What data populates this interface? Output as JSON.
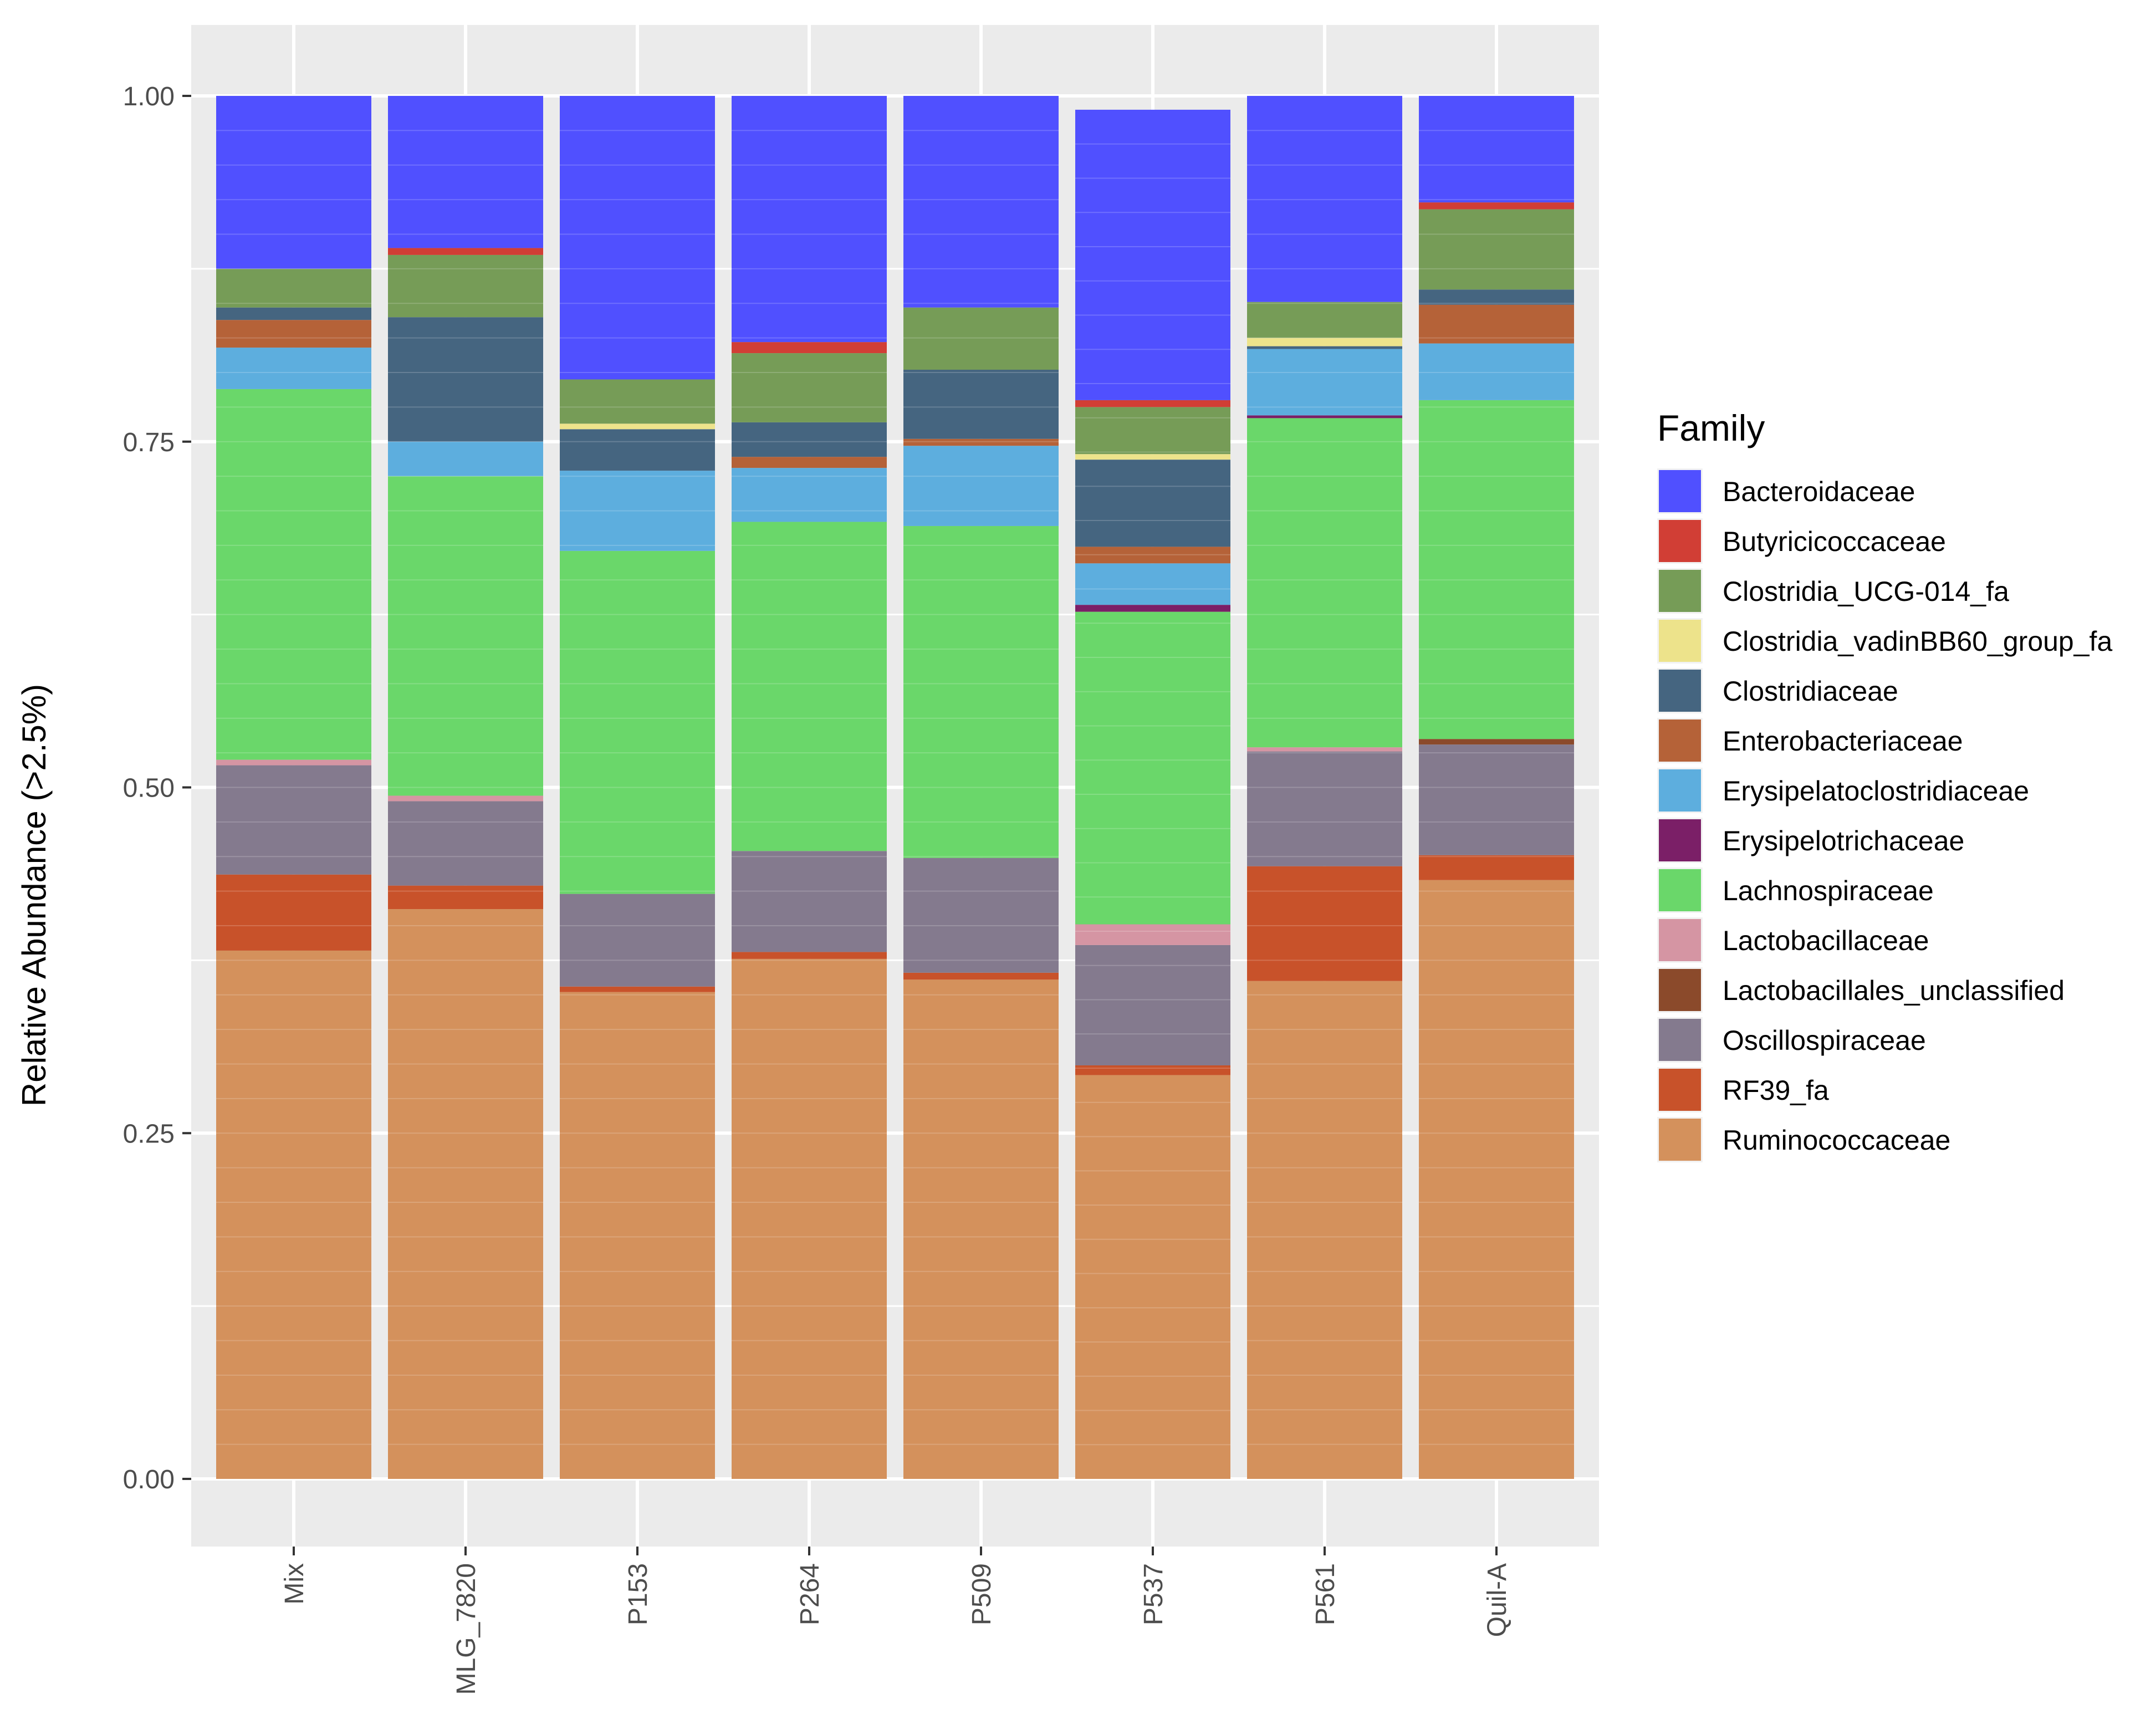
{
  "chart_data": {
    "type": "bar",
    "stacked": true,
    "ylabel": "Relative Abundance (>2.5%)",
    "xlabel": "",
    "ylim": [
      0,
      1.03
    ],
    "y_ticks": [
      "0.00",
      "0.25",
      "0.50",
      "0.75",
      "1.00"
    ],
    "y_tick_values": [
      0,
      0.25,
      0.5,
      0.75,
      1.0
    ],
    "grid": true,
    "legend_title": "Family",
    "legend_position": "right",
    "categories": [
      "Mix",
      "MLG_7820",
      "P153",
      "P264",
      "P509",
      "P537",
      "P561",
      "Quil-A"
    ],
    "series": [
      {
        "name": "Ruminococcaceae",
        "color": "#D4915C",
        "values": [
          0.382,
          0.412,
          0.352,
          0.376,
          0.361,
          0.292,
          0.36,
          0.433
        ]
      },
      {
        "name": "RF39_fa",
        "color": "#C8522A",
        "values": [
          0.055,
          0.017,
          0.004,
          0.005,
          0.005,
          0.007,
          0.083,
          0.018
        ]
      },
      {
        "name": "Oscillospiraceae",
        "color": "#847A8E",
        "values": [
          0.079,
          0.061,
          0.067,
          0.073,
          0.083,
          0.087,
          0.083,
          0.08
        ]
      },
      {
        "name": "Lactobacillales_unclassified",
        "color": "#8B4A2B",
        "values": [
          0,
          0,
          0,
          0,
          0,
          0,
          0,
          0.004
        ]
      },
      {
        "name": "Lactobacillaceae",
        "color": "#D595A3",
        "values": [
          0.004,
          0.004,
          0,
          0,
          0,
          0.015,
          0.003,
          0
        ]
      },
      {
        "name": "Lachnospiraceae",
        "color": "#6AD76A",
        "values": [
          0.268,
          0.231,
          0.248,
          0.238,
          0.24,
          0.226,
          0.238,
          0.245
        ]
      },
      {
        "name": "Erysipelotrichaceae",
        "color": "#7B1F67",
        "values": [
          0,
          0,
          0,
          0,
          0,
          0.005,
          0.002,
          0
        ]
      },
      {
        "name": "Erysipelatoclostridiaceae",
        "color": "#5DAEDE",
        "values": [
          0.03,
          0.025,
          0.058,
          0.039,
          0.058,
          0.03,
          0.048,
          0.041
        ]
      },
      {
        "name": "Enterobacteriaceae",
        "color": "#B56238",
        "values": [
          0.02,
          0,
          0,
          0.008,
          0.005,
          0.012,
          0,
          0.028
        ]
      },
      {
        "name": "Clostridiaceae",
        "color": "#456580",
        "values": [
          0.009,
          0.09,
          0.03,
          0.025,
          0.05,
          0.063,
          0.002,
          0.011
        ]
      },
      {
        "name": "Clostridia_vadinBB60_group_fa",
        "color": "#EDE38B",
        "values": [
          0,
          0,
          0.004,
          0,
          0,
          0.004,
          0.006,
          0
        ]
      },
      {
        "name": "Clostridia_UCG-014_fa",
        "color": "#769C57",
        "values": [
          0.028,
          0.045,
          0.032,
          0.05,
          0.045,
          0.034,
          0.026,
          0.058
        ]
      },
      {
        "name": "Butyricicoccaceae",
        "color": "#D13E35",
        "values": [
          0,
          0.005,
          0,
          0.008,
          0,
          0.005,
          0,
          0.005
        ]
      },
      {
        "name": "Bacteroidaceae",
        "color": "#5050FF",
        "values": [
          0.125,
          0.11,
          0.205,
          0.178,
          0.153,
          0.21,
          0.149,
          0.077
        ]
      }
    ],
    "legend_order": [
      "Bacteroidaceae",
      "Butyricicoccaceae",
      "Clostridia_UCG-014_fa",
      "Clostridia_vadinBB60_group_fa",
      "Clostridiaceae",
      "Enterobacteriaceae",
      "Erysipelatoclostridiaceae",
      "Erysipelotrichaceae",
      "Lachnospiraceae",
      "Lactobacillaceae",
      "Lactobacillales_unclassified",
      "Oscillospiraceae",
      "RF39_fa",
      "Ruminococcaceae"
    ]
  }
}
